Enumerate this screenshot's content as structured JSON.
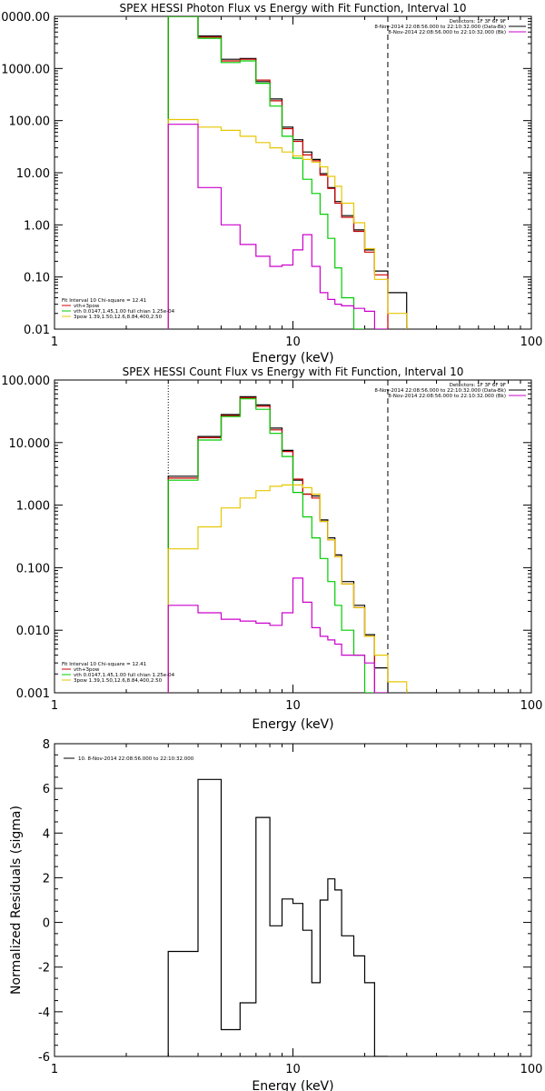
{
  "chart_data": [
    {
      "type": "line",
      "title": "SPEX HESSI Photon Flux vs Energy with Fit Function, Interval 10",
      "xlabel": "Energy (keV)",
      "ylabel": "",
      "x_scale": "log",
      "y_scale": "log",
      "xlim": [
        1,
        100
      ],
      "ylim": [
        0.01,
        10000
      ],
      "x_ticks": [
        {
          "v": 1,
          "label": "1"
        },
        {
          "v": 10,
          "label": "10"
        },
        {
          "v": 100,
          "label": "100"
        }
      ],
      "y_ticks": [
        {
          "v": 10000,
          "label": "10000.00"
        },
        {
          "v": 1000,
          "label": "1000.00"
        },
        {
          "v": 100,
          "label": "100.00"
        },
        {
          "v": 10,
          "label": "10.00"
        },
        {
          "v": 1,
          "label": "1.00"
        },
        {
          "v": 0.1,
          "label": "0.10"
        },
        {
          "v": 0.01,
          "label": "0.01"
        }
      ],
      "edges": [
        3,
        4,
        5,
        6,
        7,
        8,
        9,
        10,
        11,
        12,
        13,
        14,
        15,
        16,
        18,
        20,
        22,
        25,
        30
      ],
      "vlines": [
        {
          "x": 3,
          "style": "dotted",
          "color": "#000000"
        },
        {
          "x": 25,
          "style": "dashed",
          "color": "#000000"
        }
      ],
      "legend_top": {
        "lines": [
          {
            "text": "Detectors: 1F 3F 6F 9F",
            "color": ""
          },
          {
            "text": "8-Nov-2014 22:08:56.000 to 22:10:32.000 (Data-Bk)",
            "color": "#000000"
          },
          {
            "text": "8-Nov-2014 22:08:56.000 to 22:10:32.000 (Bk)",
            "color": "#cc00cc"
          }
        ],
        "placement": "top-right"
      },
      "legend_bottom": {
        "lines": [
          {
            "text": "Fit Interval 10   Chi-square = 12.41",
            "color": ""
          },
          {
            "text": "vth+3pow",
            "color": "#cc0000"
          },
          {
            "text": "vth 0.0147,1.45,1.00  full chian 1.25e-04",
            "color": "#00cc00"
          },
          {
            "text": "3pow 1.39,1.50,12.6,8.84,400,2.50",
            "color": "#e6c700"
          }
        ],
        "placement": "bottom-left"
      },
      "series": [
        {
          "color": "#000000",
          "values": [
            15000,
            4200,
            1500,
            1550,
            560,
            260,
            75,
            43,
            25,
            18,
            9.6,
            5.2,
            2.8,
            1.5,
            0.8,
            0.33,
            0.13,
            0.05
          ]
        },
        {
          "color": "#cc0000",
          "values": [
            15000,
            4000,
            1400,
            1500,
            600,
            240,
            70,
            40,
            22,
            17,
            9.0,
            5.0,
            2.6,
            1.4,
            0.75,
            0.3,
            0.11
          ]
        },
        {
          "color": "#00cc00",
          "values": [
            15000,
            3800,
            1300,
            1400,
            520,
            190,
            50,
            19,
            7.5,
            4.0,
            1.6,
            0.55,
            0.15,
            0.04,
            0.005
          ]
        },
        {
          "color": "#e6c700",
          "values": [
            105,
            75,
            65,
            50,
            38,
            30,
            25,
            21,
            18,
            16,
            13,
            8.5,
            5.5,
            2.6,
            1.1,
            0.35,
            0.09,
            0.02
          ]
        },
        {
          "color": "#cc00cc",
          "values": [
            85,
            5.2,
            1.0,
            0.42,
            0.25,
            0.16,
            0.17,
            0.33,
            0.65,
            0.16,
            0.05,
            0.037,
            0.03,
            0.028,
            0.025,
            0.022,
            0.01
          ]
        }
      ]
    },
    {
      "type": "line",
      "title": "SPEX HESSI Count Flux vs Energy with Fit Function, Interval 10",
      "xlabel": "Energy (keV)",
      "ylabel": "",
      "x_scale": "log",
      "y_scale": "log",
      "xlim": [
        1,
        100
      ],
      "ylim": [
        0.001,
        100
      ],
      "x_ticks": [
        {
          "v": 1,
          "label": "1"
        },
        {
          "v": 10,
          "label": "10"
        },
        {
          "v": 100,
          "label": "100"
        }
      ],
      "y_ticks": [
        {
          "v": 100,
          "label": "100.000"
        },
        {
          "v": 10,
          "label": "10.000"
        },
        {
          "v": 1,
          "label": "1.000"
        },
        {
          "v": 0.1,
          "label": "0.100"
        },
        {
          "v": 0.01,
          "label": "0.010"
        },
        {
          "v": 0.001,
          "label": "0.001"
        }
      ],
      "edges": [
        3,
        4,
        5,
        6,
        7,
        8,
        9,
        10,
        11,
        12,
        13,
        14,
        15,
        16,
        18,
        20,
        22,
        25,
        30
      ],
      "vlines": [
        {
          "x": 3,
          "style": "dotted",
          "color": "#000000"
        },
        {
          "x": 25,
          "style": "dashed",
          "color": "#000000"
        }
      ],
      "legend_top": {
        "lines": [
          {
            "text": "Detectors: 1F 3F 6F 9F",
            "color": ""
          },
          {
            "text": "8-Nov-2014 22:08:56.000 to 22:10:32.000 (Data-Bk)",
            "color": "#000000"
          },
          {
            "text": "8-Nov-2014 22:08:56.000 to 22:10:32.000 (Bk)",
            "color": "#cc00cc"
          }
        ],
        "placement": "top-right"
      },
      "legend_bottom": {
        "lines": [
          {
            "text": "Fit Interval 10   Chi-square = 12.41",
            "color": ""
          },
          {
            "text": "vth+3pow",
            "color": "#cc0000"
          },
          {
            "text": "vth 0.0147,1.45,1.00  full chian 1.25e-04",
            "color": "#00cc00"
          },
          {
            "text": "3pow 1.39,1.50,12.6,8.84,400,2.50",
            "color": "#e6c700"
          }
        ],
        "placement": "bottom-left"
      },
      "series": [
        {
          "color": "#000000",
          "values": [
            2.9,
            12.5,
            28,
            54,
            40,
            17,
            7.5,
            2.5,
            1.5,
            1.4,
            0.58,
            0.3,
            0.16,
            0.06,
            0.025,
            0.0085,
            0.0025
          ]
        },
        {
          "color": "#cc0000",
          "values": [
            2.7,
            12,
            27,
            52,
            38,
            16,
            7.2,
            2.6,
            1.5,
            1.3,
            0.55,
            0.28,
            0.15,
            0.055,
            0.023,
            0.008
          ]
        },
        {
          "color": "#00cc00",
          "values": [
            2.5,
            11,
            26,
            50,
            34,
            14,
            6.0,
            1.6,
            0.65,
            0.3,
            0.14,
            0.06,
            0.025,
            0.01,
            0.004,
            0.001
          ]
        },
        {
          "color": "#e6c700",
          "values": [
            0.2,
            0.45,
            0.9,
            1.3,
            1.7,
            2.0,
            2.1,
            2.1,
            1.9,
            1.5,
            0.55,
            0.28,
            0.15,
            0.055,
            0.023,
            0.008,
            0.004,
            0.0015
          ]
        },
        {
          "color": "#cc00cc",
          "values": [
            0.025,
            0.019,
            0.015,
            0.014,
            0.013,
            0.012,
            0.019,
            0.068,
            0.028,
            0.011,
            0.008,
            0.007,
            0.006,
            0.004,
            0.004,
            0.003,
            0.001
          ]
        }
      ]
    },
    {
      "type": "line",
      "title": "",
      "xlabel": "Energy (keV)",
      "ylabel": "Normalized Residuals (sigma)",
      "x_scale": "log",
      "y_scale": "linear",
      "xlim": [
        1,
        100
      ],
      "ylim": [
        -6,
        8
      ],
      "x_ticks": [
        {
          "v": 1,
          "label": "1"
        },
        {
          "v": 10,
          "label": "10"
        },
        {
          "v": 100,
          "label": "100"
        }
      ],
      "y_ticks": [
        {
          "v": 8,
          "label": "8"
        },
        {
          "v": 6,
          "label": "6"
        },
        {
          "v": 4,
          "label": "4"
        },
        {
          "v": 2,
          "label": "2"
        },
        {
          "v": 0,
          "label": "0"
        },
        {
          "v": -2,
          "label": "-2"
        },
        {
          "v": -4,
          "label": "-4"
        },
        {
          "v": -6,
          "label": "-6"
        }
      ],
      "edges": [
        3,
        4,
        5,
        6,
        7,
        8,
        9,
        10,
        11,
        12,
        13,
        14,
        15,
        16,
        18,
        20,
        22,
        25
      ],
      "vlines": [],
      "legend_top": {
        "lines": [
          {
            "text": "10.  8-Nov-2014 22:08:56.000 to 22:10:32.000",
            "color": "#000000"
          }
        ],
        "placement": "top-left"
      },
      "legend_bottom": {
        "lines": [],
        "placement": ""
      },
      "series": [
        {
          "color": "#000000",
          "values": [
            -1.3,
            6.4,
            -4.8,
            -3.6,
            4.7,
            -0.15,
            1.05,
            0.85,
            -0.35,
            -2.7,
            1.0,
            1.95,
            1.45,
            -0.6,
            -1.5,
            -2.7,
            -6
          ]
        }
      ]
    }
  ]
}
